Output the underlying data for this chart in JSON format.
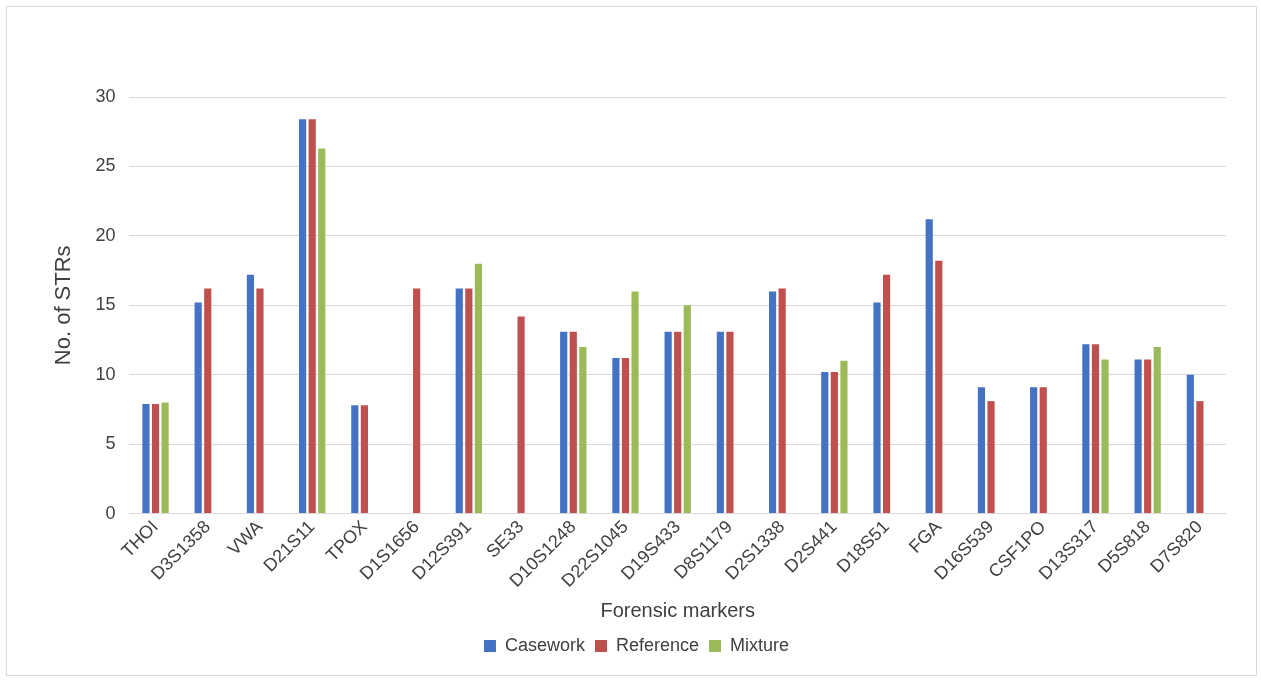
{
  "chart_data": {
    "type": "bar",
    "xlabel": "Forensic markers",
    "ylabel": "No. of STRs",
    "categories": [
      "THOI",
      "D3S1358",
      "VWA",
      "D21S11",
      "TPOX",
      "D1S1656",
      "D12S391",
      "SE33",
      "D10S1248",
      "D22S1045",
      "D19S433",
      "D8S1179",
      "D2S1338",
      "D2S441",
      "D18S51",
      "FGA",
      "D16S539",
      "CSF1PO",
      "D13S317",
      "D5S818",
      "D7S820"
    ],
    "series": [
      {
        "name": "Casework",
        "color": "#4472c4",
        "values": [
          7.9,
          15.2,
          17.2,
          28.4,
          7.8,
          null,
          16.2,
          null,
          13.1,
          11.2,
          13.1,
          13.1,
          16,
          10.2,
          15.2,
          21.2,
          9.1,
          9.1,
          12.2,
          11.1,
          10
        ]
      },
      {
        "name": "Reference",
        "color": "#c0504d",
        "values": [
          7.9,
          16.2,
          16.2,
          28.4,
          7.8,
          16.2,
          16.2,
          14.2,
          13.1,
          11.2,
          13.1,
          13.1,
          16.2,
          10.2,
          17.2,
          18.2,
          8.1,
          9.1,
          12.2,
          11.1,
          8.1
        ]
      },
      {
        "name": "Mixture",
        "color": "#9bbb59",
        "values": [
          8,
          null,
          null,
          26.3,
          null,
          null,
          18,
          null,
          12,
          16,
          15,
          null,
          null,
          11,
          null,
          null,
          null,
          null,
          11.1,
          12,
          null
        ]
      }
    ],
    "ylim": [
      0,
      30
    ],
    "yticks": [
      0,
      5,
      10,
      15,
      20,
      25,
      30
    ],
    "grid": "y",
    "legend": "bottom"
  }
}
